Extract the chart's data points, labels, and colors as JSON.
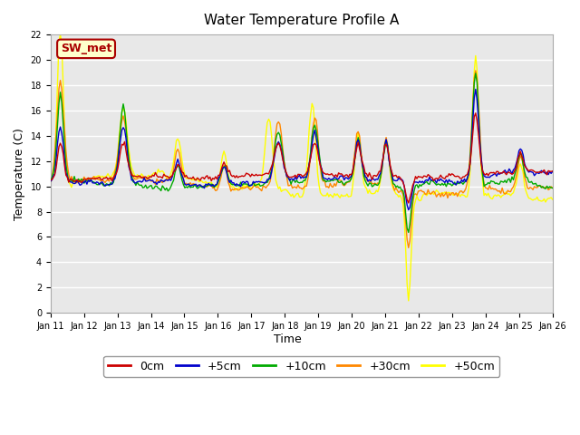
{
  "title": "Water Temperature Profile A",
  "xlabel": "Time",
  "ylabel": "Temperature (C)",
  "ylim": [
    0,
    22
  ],
  "xlim": [
    0,
    15
  ],
  "background_color": "#ffffff",
  "plot_bg_color": "#e8e8e8",
  "grid_color": "#ffffff",
  "x_tick_labels": [
    "Jan 11",
    "Jan 12",
    "Jan 13",
    "Jan 14",
    "Jan 15",
    "Jan 16",
    "Jan 17",
    "Jan 18",
    "Jan 19",
    "Jan 20",
    "Jan 21",
    "Jan 22",
    "Jan 23",
    "Jan 24",
    "Jan 25",
    "Jan 26"
  ],
  "legend_label": "SW_met",
  "legend_bg": "#ffffcc",
  "legend_border": "#aa0000",
  "series_labels": [
    "0cm",
    "+5cm",
    "+10cm",
    "+30cm",
    "+50cm"
  ],
  "series_colors": [
    "#cc0000",
    "#0000cc",
    "#00aa00",
    "#ff8800",
    "#ffff00"
  ],
  "yticks": [
    0,
    2,
    4,
    6,
    8,
    10,
    12,
    14,
    16,
    18,
    20,
    22
  ]
}
